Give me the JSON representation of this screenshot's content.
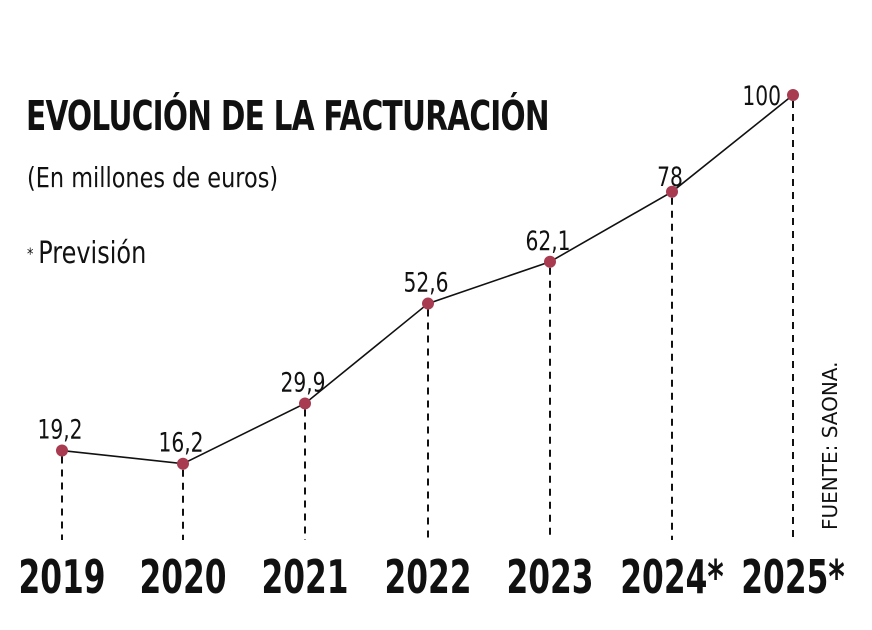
{
  "chart_data": {
    "type": "line",
    "title": "EVOLUCIÓN DE LA FACTURACIÓN",
    "subtitle": "(En millones de euros)",
    "note": "Previsión",
    "note_marker": "*",
    "source": "FUENTE: SAONA.",
    "categories": [
      "2019",
      "2020",
      "2021",
      "2022",
      "2023",
      "2024*",
      "2025*"
    ],
    "value_labels": [
      "19,2",
      "16,2",
      "29,9",
      "52,6",
      "62,1",
      "78",
      "100"
    ],
    "values": [
      19.2,
      16.2,
      29.9,
      52.6,
      62.1,
      78,
      100
    ],
    "ylim": [
      0,
      100
    ],
    "grid": false,
    "legend": "none",
    "colors": {
      "marker": "#a83b50",
      "line": "#111111",
      "text": "#111111"
    }
  }
}
